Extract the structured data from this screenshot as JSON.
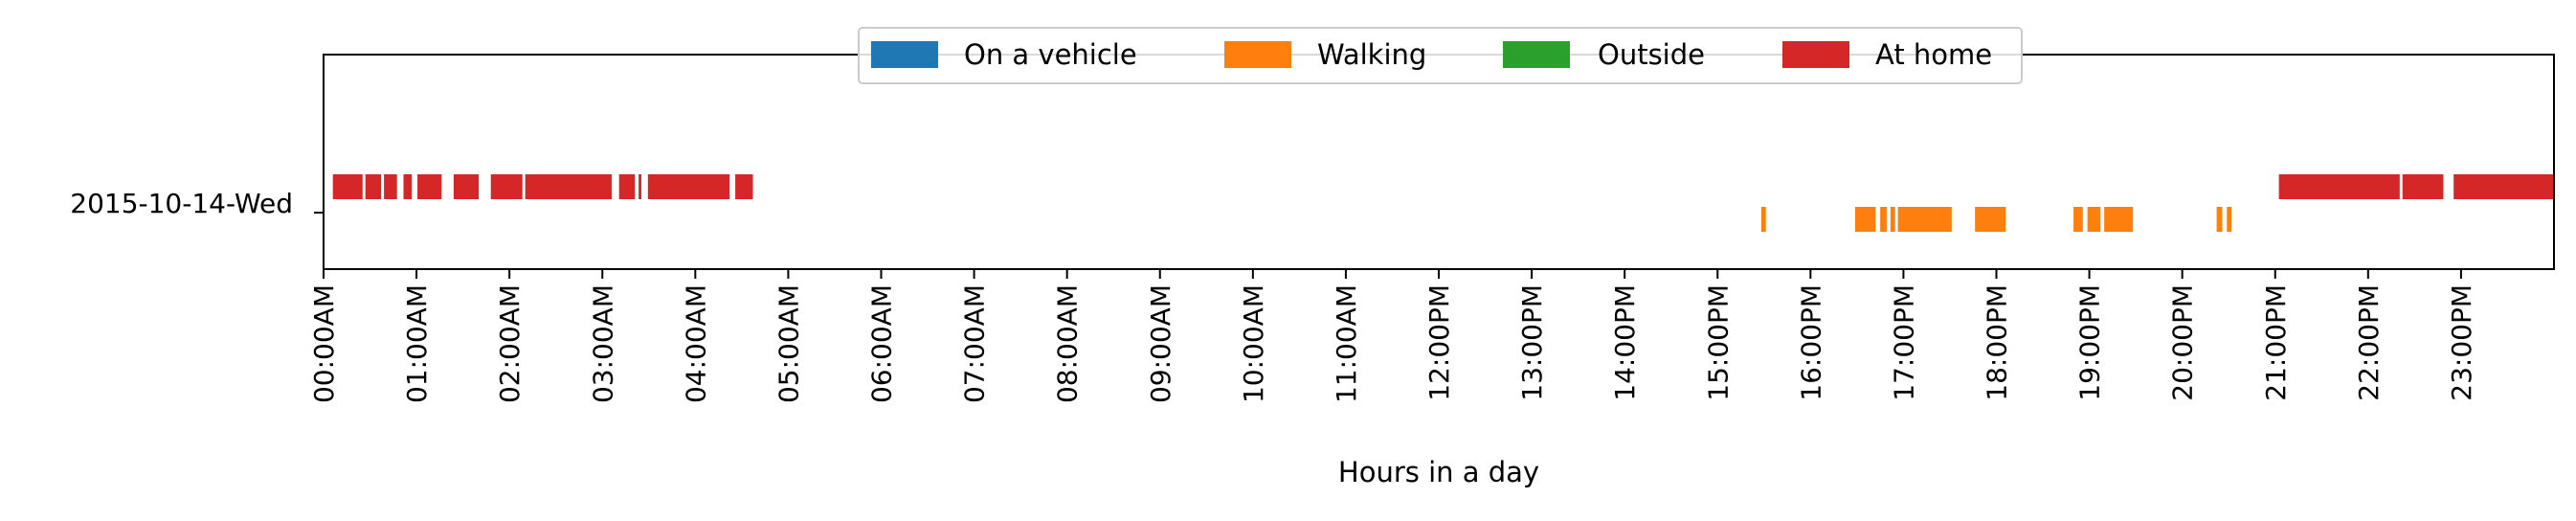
{
  "chart_data": {
    "type": "timeline",
    "xlabel": "Hours in a day",
    "ylabel": "",
    "xlim": [
      0,
      24
    ],
    "x_unit": "hours",
    "row": "2015-10-14-Wed",
    "x_tick_labels": [
      "00:00AM",
      "01:00AM",
      "02:00AM",
      "03:00AM",
      "04:00AM",
      "05:00AM",
      "06:00AM",
      "07:00AM",
      "08:00AM",
      "09:00AM",
      "10:00AM",
      "11:00AM",
      "12:00PM",
      "13:00PM",
      "14:00PM",
      "15:00PM",
      "16:00PM",
      "17:00PM",
      "18:00PM",
      "19:00PM",
      "20:00PM",
      "21:00PM",
      "22:00PM",
      "23:00PM"
    ],
    "legend": {
      "placement": "top-center",
      "entries": [
        "On a vehicle",
        "Walking",
        "Outside",
        "At home"
      ]
    },
    "series": [
      {
        "name": "On a vehicle",
        "color": "#1f77b4",
        "segments": []
      },
      {
        "name": "Walking",
        "color": "#ff7f0e",
        "segments": [
          [
            15.47,
            15.52
          ],
          [
            16.48,
            16.7
          ],
          [
            16.75,
            16.82
          ],
          [
            16.86,
            16.91
          ],
          [
            16.94,
            17.52
          ],
          [
            17.77,
            18.1
          ],
          [
            18.83,
            18.93
          ],
          [
            18.98,
            19.12
          ],
          [
            19.16,
            19.47
          ],
          [
            20.37,
            20.43
          ],
          [
            20.48,
            20.53
          ]
        ]
      },
      {
        "name": "Outside",
        "color": "#2ca02c",
        "segments": []
      },
      {
        "name": "At home",
        "color": "#d62728",
        "segments": [
          [
            0.1,
            0.42
          ],
          [
            0.45,
            0.62
          ],
          [
            0.65,
            0.79
          ],
          [
            0.86,
            0.95
          ],
          [
            1.01,
            1.27
          ],
          [
            1.4,
            1.67
          ],
          [
            1.8,
            2.14
          ],
          [
            2.17,
            3.1
          ],
          [
            3.18,
            3.35
          ],
          [
            3.39,
            3.42
          ],
          [
            3.49,
            4.37
          ],
          [
            4.43,
            4.62
          ],
          [
            21.04,
            22.34
          ],
          [
            22.37,
            22.81
          ],
          [
            22.92,
            24.0
          ]
        ]
      }
    ]
  }
}
